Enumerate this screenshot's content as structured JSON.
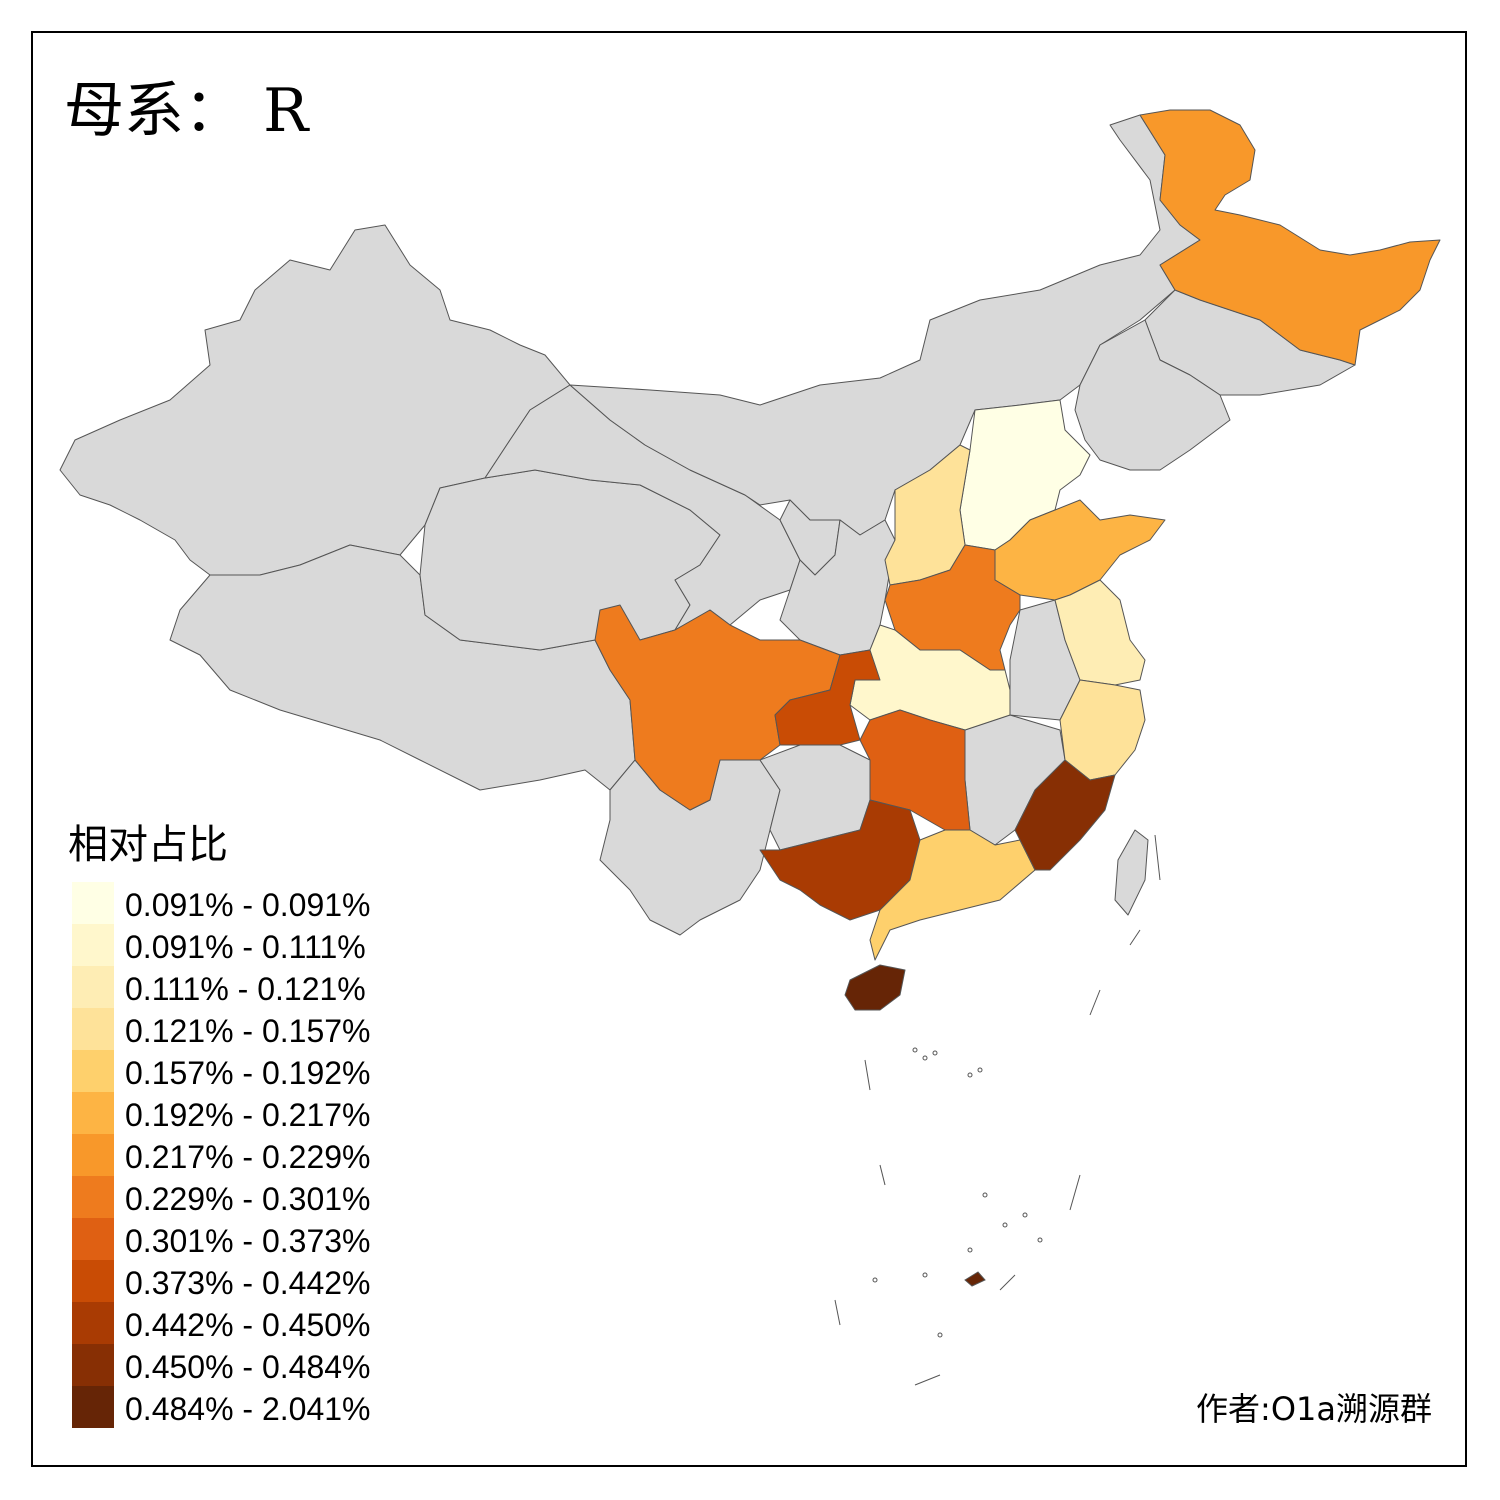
{
  "title": "母系： R",
  "legend": {
    "title": "相对占比",
    "items": [
      {
        "label": "0.091% - 0.091%",
        "color": "#FFFFE5"
      },
      {
        "label": "0.091% - 0.111%",
        "color": "#FFF7CC"
      },
      {
        "label": "0.111% - 0.121%",
        "color": "#FEEDB4"
      },
      {
        "label": "0.121% - 0.157%",
        "color": "#FEE299"
      },
      {
        "label": "0.157% - 0.192%",
        "color": "#FED06C"
      },
      {
        "label": "0.192% - 0.217%",
        "color": "#FDB444"
      },
      {
        "label": "0.217% - 0.229%",
        "color": "#F8982A"
      },
      {
        "label": "0.229% - 0.301%",
        "color": "#EE7B1E"
      },
      {
        "label": "0.301% - 0.373%",
        "color": "#DF6013"
      },
      {
        "label": "0.373% - 0.442%",
        "color": "#C94C05"
      },
      {
        "label": "0.442% - 0.450%",
        "color": "#A93B03"
      },
      {
        "label": "0.450% - 0.484%",
        "color": "#872F04"
      },
      {
        "label": "0.484% - 2.041%",
        "color": "#662506"
      }
    ]
  },
  "map": {
    "no_data_color": "#D9D9D9",
    "border_color": "#555555",
    "provinces": [
      {
        "name": "Xinjiang",
        "class": null
      },
      {
        "name": "Tibet",
        "class": null
      },
      {
        "name": "Qinghai",
        "class": null
      },
      {
        "name": "Gansu",
        "class": null
      },
      {
        "name": "Inner Mongolia",
        "class": null
      },
      {
        "name": "Ningxia",
        "class": null
      },
      {
        "name": "Shaanxi",
        "class": null
      },
      {
        "name": "Yunnan",
        "class": null
      },
      {
        "name": "Guizhou",
        "class": null
      },
      {
        "name": "Jiangxi",
        "class": null
      },
      {
        "name": "Anhui",
        "class": null
      },
      {
        "name": "Jilin",
        "class": null
      },
      {
        "name": "Liaoning",
        "class": null
      },
      {
        "name": "Taiwan",
        "class": null
      },
      {
        "name": "Heilongjiang",
        "class": 6
      },
      {
        "name": "Hebei",
        "class": 0
      },
      {
        "name": "Shanxi",
        "class": 3
      },
      {
        "name": "Shandong",
        "class": 5
      },
      {
        "name": "Henan",
        "class": 7
      },
      {
        "name": "Hubei",
        "class": 1
      },
      {
        "name": "Jiangsu",
        "class": 2
      },
      {
        "name": "Zhejiang",
        "class": 3
      },
      {
        "name": "Sichuan",
        "class": 7
      },
      {
        "name": "Chongqing",
        "class": 9
      },
      {
        "name": "Hunan",
        "class": 8
      },
      {
        "name": "Guangxi",
        "class": 10
      },
      {
        "name": "Guangdong",
        "class": 4
      },
      {
        "name": "Fujian",
        "class": 11
      },
      {
        "name": "Hainan",
        "class": 12
      }
    ]
  },
  "credit": "作者:O1a溯源群"
}
